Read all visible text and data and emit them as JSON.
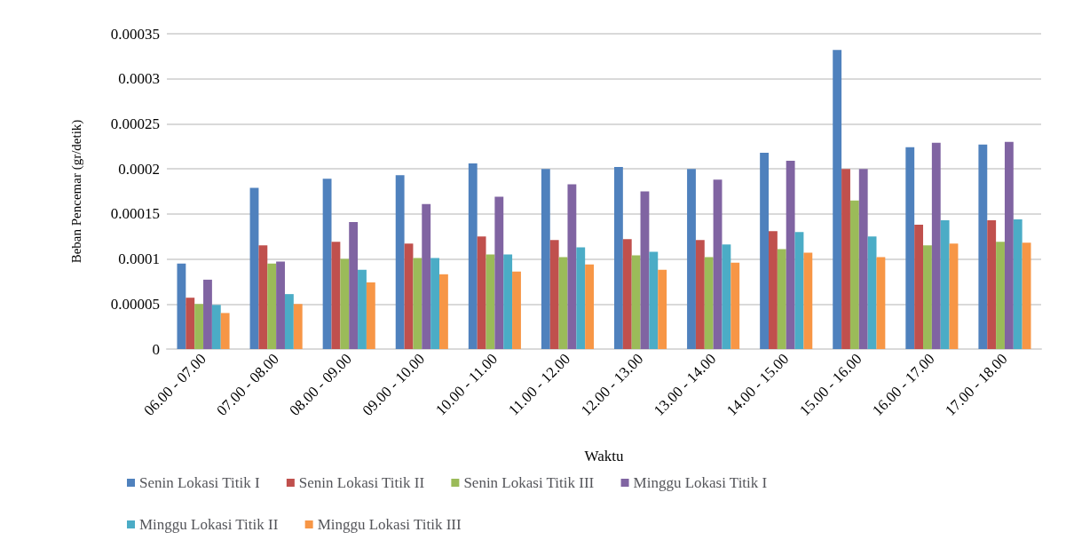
{
  "chart_data": {
    "type": "bar",
    "xlabel": "Waktu",
    "ylabel": "Beban Pencemar (gr/detik)",
    "categories": [
      "06.00 - 07.00",
      "07.00 - 08.00",
      "08.00 - 09.00",
      "09.00 - 10.00",
      "10.00 - 11.00",
      "11.00 - 12.00",
      "12.00 - 13.00",
      "13.00 - 14.00",
      "14.00 - 15.00",
      "15.00 - 16.00",
      "16.00 - 17.00",
      "17.00 - 18.00"
    ],
    "series": [
      {
        "name": "Senin Lokasi Titik I",
        "color": "#4f81bd",
        "values": [
          9.5e-05,
          0.000179,
          0.000189,
          0.000193,
          0.000206,
          0.0002,
          0.000202,
          0.0002,
          0.000218,
          0.000332,
          0.000224,
          0.000227
        ]
      },
      {
        "name": "Senin Lokasi Titik II",
        "color": "#c0504d",
        "values": [
          5.7e-05,
          0.000115,
          0.000119,
          0.000117,
          0.000125,
          0.000121,
          0.000122,
          0.000121,
          0.000131,
          0.0002,
          0.000138,
          0.000143
        ]
      },
      {
        "name": "Senin Lokasi Titik III",
        "color": "#9bbb59",
        "values": [
          5e-05,
          9.5e-05,
          0.0001,
          0.000101,
          0.000105,
          0.000102,
          0.000104,
          0.000102,
          0.000111,
          0.000165,
          0.000115,
          0.000119
        ]
      },
      {
        "name": "Minggu Lokasi Titik I",
        "color": "#8064a2",
        "values": [
          7.7e-05,
          9.7e-05,
          0.000141,
          0.000161,
          0.000169,
          0.000183,
          0.000175,
          0.000188,
          0.000209,
          0.0002,
          0.000229,
          0.00023
        ]
      },
      {
        "name": "Minggu Lokasi Titik II",
        "color": "#4bacc6",
        "values": [
          4.9e-05,
          6.1e-05,
          8.8e-05,
          0.000101,
          0.000105,
          0.000113,
          0.000108,
          0.000116,
          0.00013,
          0.000125,
          0.000143,
          0.000144
        ]
      },
      {
        "name": "Minggu Lokasi Titik III",
        "color": "#f79646",
        "values": [
          4e-05,
          5e-05,
          7.4e-05,
          8.3e-05,
          8.6e-05,
          9.4e-05,
          8.8e-05,
          9.6e-05,
          0.000107,
          0.000102,
          0.000117,
          0.000118
        ]
      }
    ],
    "ylim": [
      0,
      0.00035
    ],
    "yticks": [
      0,
      {
        "value": 5e-05,
        "label": "0.00005"
      },
      0.0001,
      0.00015,
      0.0002,
      0.00025,
      0.0003,
      0.00035
    ],
    "grid": "y",
    "legend": "bottom"
  }
}
